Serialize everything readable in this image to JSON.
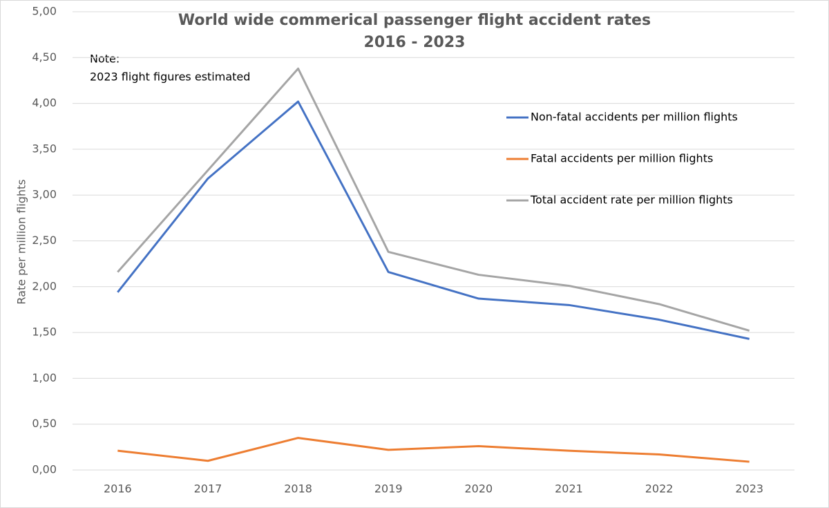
{
  "chart_data": {
    "type": "line",
    "title": [
      "World wide commerical passenger flight accident rates",
      "2016 - 2023"
    ],
    "y_label": "Rate per million flights",
    "annotation": [
      "Note:",
      "2023 flight figures estimated"
    ],
    "categories": [
      "2016",
      "2017",
      "2018",
      "2019",
      "2020",
      "2021",
      "2022",
      "2023"
    ],
    "series": [
      {
        "name": "Non-fatal accidents per million flights",
        "color": "#4472c4",
        "values": [
          1.94,
          3.18,
          4.02,
          2.16,
          1.87,
          1.8,
          1.64,
          1.43
        ]
      },
      {
        "name": "Fatal accidents per million flights",
        "color": "#ed7d31",
        "values": [
          0.21,
          0.1,
          0.35,
          0.22,
          0.26,
          0.21,
          0.17,
          0.09
        ]
      },
      {
        "name": "Total accident rate per million flights",
        "color": "#a5a5a5",
        "values": [
          2.16,
          3.27,
          4.38,
          2.38,
          2.13,
          2.01,
          1.81,
          1.52
        ]
      }
    ],
    "ylim": [
      0,
      5
    ],
    "yticks": [
      {
        "value": 0,
        "label": "0,00"
      },
      {
        "value": 0.5,
        "label": "0,50"
      },
      {
        "value": 1,
        "label": "1,00"
      },
      {
        "value": 1.5,
        "label": "1,50"
      },
      {
        "value": 2,
        "label": "2,00"
      },
      {
        "value": 2.5,
        "label": "2,50"
      },
      {
        "value": 3,
        "label": "3,00"
      },
      {
        "value": 3.5,
        "label": "3,50"
      },
      {
        "value": 4,
        "label": "4,00"
      },
      {
        "value": 4.5,
        "label": "4,50"
      },
      {
        "value": 5,
        "label": "5,00"
      }
    ],
    "grid": true
  }
}
